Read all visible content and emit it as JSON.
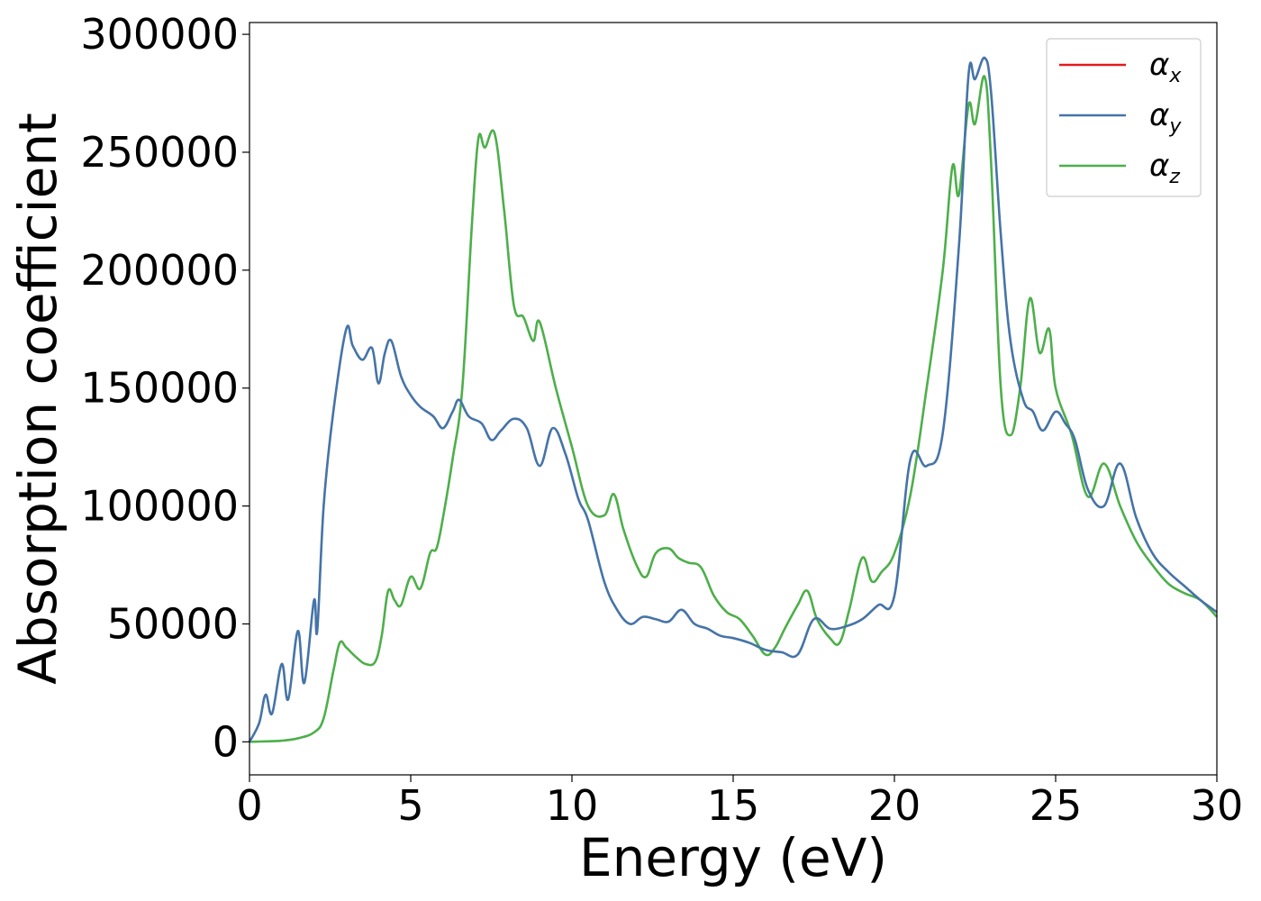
{
  "chart_data": {
    "type": "line",
    "xlabel": "Energy (eV)",
    "ylabel": "Absorption coefficient",
    "xlim": [
      0,
      30
    ],
    "ylim": [
      -14000,
      305000
    ],
    "xticks": [
      0,
      5,
      10,
      15,
      20,
      25,
      30
    ],
    "yticks": [
      0,
      50000,
      100000,
      150000,
      200000,
      250000,
      300000
    ],
    "grid": false,
    "legend_position": "top-right",
    "series": [
      {
        "name": "α_x",
        "legend_main": "α",
        "legend_sub": "x",
        "color": "#e41a1c",
        "x": [
          0,
          0.3,
          0.5,
          0.7,
          1.0,
          1.2,
          1.5,
          1.7,
          2.0,
          2.1,
          2.3,
          2.6,
          3.0,
          3.2,
          3.5,
          3.8,
          4.0,
          4.2,
          4.4,
          4.7,
          5.0,
          5.3,
          5.7,
          6.0,
          6.3,
          6.5,
          6.8,
          7.2,
          7.5,
          7.8,
          8.2,
          8.6,
          9.0,
          9.4,
          9.8,
          10.2,
          10.5,
          11.0,
          11.4,
          11.8,
          12.2,
          12.6,
          13.0,
          13.4,
          13.8,
          14.2,
          14.6,
          15.0,
          15.5,
          16.0,
          16.5,
          17.0,
          17.5,
          18.0,
          18.5,
          19.0,
          19.5,
          20.0,
          20.5,
          21.0,
          21.5,
          22.0,
          22.3,
          22.5,
          22.8,
          23.0,
          23.3,
          23.6,
          24.0,
          24.3,
          24.6,
          25.0,
          25.3,
          25.6,
          26.0,
          26.5,
          27.0,
          27.5,
          28.0,
          28.5,
          29.0,
          29.5,
          30.0
        ],
        "y": [
          0,
          8000,
          20000,
          12000,
          33000,
          18000,
          47000,
          25000,
          60000,
          47000,
          100000,
          140000,
          175000,
          168000,
          162000,
          167000,
          152000,
          165000,
          170000,
          155000,
          147000,
          142000,
          138000,
          133000,
          140000,
          145000,
          138000,
          135000,
          128000,
          132000,
          137000,
          133000,
          117000,
          133000,
          122000,
          103000,
          94000,
          68000,
          56000,
          50000,
          53000,
          52000,
          51000,
          56000,
          50000,
          48000,
          45000,
          44000,
          42000,
          39000,
          38000,
          37000,
          52000,
          48000,
          49000,
          52000,
          58000,
          62000,
          120000,
          117000,
          131000,
          210000,
          283000,
          281000,
          290000,
          275000,
          215000,
          170000,
          145000,
          140000,
          132000,
          140000,
          135000,
          128000,
          107000,
          100000,
          118000,
          95000,
          80000,
          72000,
          66000,
          60000,
          55000
        ],
        "width": 2
      },
      {
        "name": "α_y",
        "legend_main": "α",
        "legend_sub": "y",
        "color": "#4574a8",
        "x": [
          0,
          0.3,
          0.5,
          0.7,
          1.0,
          1.2,
          1.5,
          1.7,
          2.0,
          2.1,
          2.3,
          2.6,
          3.0,
          3.2,
          3.5,
          3.8,
          4.0,
          4.2,
          4.4,
          4.7,
          5.0,
          5.3,
          5.7,
          6.0,
          6.3,
          6.5,
          6.8,
          7.2,
          7.5,
          7.8,
          8.2,
          8.6,
          9.0,
          9.4,
          9.8,
          10.2,
          10.5,
          11.0,
          11.4,
          11.8,
          12.2,
          12.6,
          13.0,
          13.4,
          13.8,
          14.2,
          14.6,
          15.0,
          15.5,
          16.0,
          16.5,
          17.0,
          17.5,
          18.0,
          18.5,
          19.0,
          19.5,
          20.0,
          20.5,
          21.0,
          21.5,
          22.0,
          22.3,
          22.5,
          22.8,
          23.0,
          23.3,
          23.6,
          24.0,
          24.3,
          24.6,
          25.0,
          25.3,
          25.6,
          26.0,
          26.5,
          27.0,
          27.5,
          28.0,
          28.5,
          29.0,
          29.5,
          30.0
        ],
        "y": [
          0,
          8000,
          20000,
          12000,
          33000,
          18000,
          47000,
          25000,
          60000,
          47000,
          100000,
          140000,
          175000,
          168000,
          162000,
          167000,
          152000,
          165000,
          170000,
          155000,
          147000,
          142000,
          138000,
          133000,
          140000,
          145000,
          138000,
          135000,
          128000,
          132000,
          137000,
          133000,
          117000,
          133000,
          122000,
          103000,
          94000,
          68000,
          56000,
          50000,
          53000,
          52000,
          51000,
          56000,
          50000,
          48000,
          45000,
          44000,
          42000,
          39000,
          38000,
          37000,
          52000,
          48000,
          49000,
          52000,
          58000,
          62000,
          120000,
          117000,
          131000,
          210000,
          283000,
          281000,
          290000,
          275000,
          215000,
          170000,
          145000,
          140000,
          132000,
          140000,
          135000,
          128000,
          107000,
          100000,
          118000,
          95000,
          80000,
          72000,
          66000,
          60000,
          55000
        ],
        "width": 2.6
      },
      {
        "name": "α_z",
        "legend_main": "α",
        "legend_sub": "z",
        "color": "#4daf4a",
        "x": [
          0,
          0.5,
          1.0,
          1.5,
          2.0,
          2.3,
          2.6,
          2.8,
          3.0,
          3.3,
          3.6,
          3.9,
          4.1,
          4.3,
          4.5,
          4.7,
          5.0,
          5.3,
          5.6,
          5.8,
          6.0,
          6.3,
          6.6,
          6.9,
          7.1,
          7.3,
          7.6,
          7.9,
          8.2,
          8.5,
          8.8,
          9.0,
          9.5,
          10.0,
          10.5,
          11.0,
          11.3,
          11.6,
          12.0,
          12.3,
          12.6,
          13.0,
          13.3,
          13.6,
          14.0,
          14.4,
          14.8,
          15.2,
          15.6,
          16.0,
          16.3,
          16.6,
          17.0,
          17.3,
          17.6,
          18.0,
          18.3,
          18.6,
          19.0,
          19.3,
          19.6,
          20.0,
          20.5,
          21.0,
          21.5,
          21.8,
          22.0,
          22.3,
          22.5,
          22.8,
          23.0,
          23.3,
          23.6,
          23.9,
          24.2,
          24.5,
          24.8,
          25.0,
          25.5,
          26.0,
          26.5,
          27.0,
          27.5,
          28.0,
          28.5,
          29.0,
          29.5,
          30.0
        ],
        "y": [
          0,
          200,
          500,
          1500,
          4000,
          10000,
          30000,
          42000,
          40000,
          36000,
          33000,
          34000,
          45000,
          64000,
          60000,
          58000,
          70000,
          65000,
          80000,
          82000,
          95000,
          120000,
          150000,
          220000,
          256000,
          252000,
          258000,
          225000,
          185000,
          180000,
          170000,
          178000,
          150000,
          125000,
          100000,
          96000,
          105000,
          90000,
          75000,
          70000,
          80000,
          82000,
          78000,
          76000,
          74000,
          62000,
          55000,
          52000,
          45000,
          37000,
          40000,
          48000,
          58000,
          64000,
          52000,
          44000,
          42000,
          56000,
          78000,
          68000,
          72000,
          80000,
          105000,
          150000,
          200000,
          244000,
          232000,
          270000,
          262000,
          282000,
          245000,
          150000,
          130000,
          150000,
          188000,
          165000,
          175000,
          150000,
          130000,
          104000,
          118000,
          100000,
          85000,
          75000,
          67000,
          63000,
          60000,
          53000
        ],
        "width": 2.6
      }
    ]
  }
}
